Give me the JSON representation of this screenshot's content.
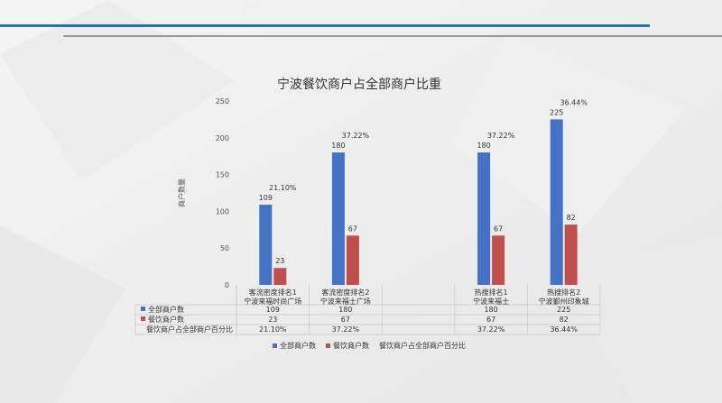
{
  "chart_data": {
    "type": "bar",
    "title": "宁波餐饮商户占全部商户比重",
    "ylabel": "商户数量",
    "xlabel": "",
    "ylim": [
      0,
      250
    ],
    "yticks": [
      0,
      50,
      100,
      150,
      200,
      250
    ],
    "categories": [
      [
        "客流密度排名1",
        "宁波来福时尚广场"
      ],
      [
        "客流密度排名2",
        "宁波来福士广场"
      ],
      [
        "",
        ""
      ],
      [
        "热搜排名1",
        "宁波来福士"
      ],
      [
        "热搜排名2",
        "宁波鄞州印象城"
      ]
    ],
    "series": [
      {
        "name": "全部商户数",
        "color": "#4472C4",
        "values": [
          109,
          180,
          null,
          180,
          225
        ]
      },
      {
        "name": "餐饮商户数",
        "color": "#C0504D",
        "values": [
          23,
          67,
          null,
          67,
          82
        ]
      }
    ],
    "ratio_series": {
      "name": "餐饮商户占全部商户百分比",
      "values": [
        "21.10%",
        "37.22%",
        "",
        "37.22%",
        "36.44%"
      ]
    },
    "grid": false,
    "legend": "bottom",
    "data_table": true
  }
}
